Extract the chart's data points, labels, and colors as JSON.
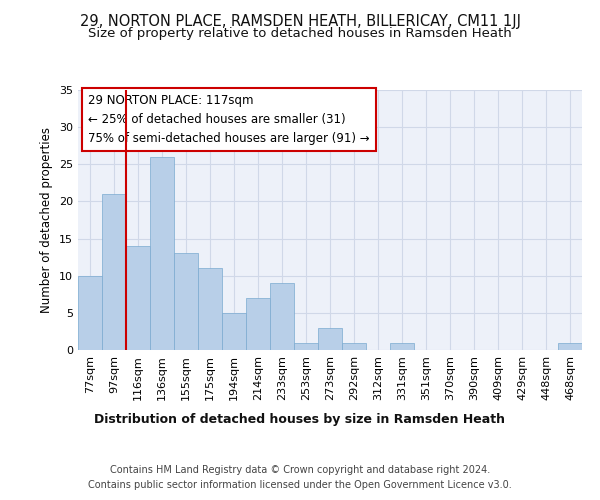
{
  "title1": "29, NORTON PLACE, RAMSDEN HEATH, BILLERICAY, CM11 1JJ",
  "title2": "Size of property relative to detached houses in Ramsden Heath",
  "xlabel": "Distribution of detached houses by size in Ramsden Heath",
  "ylabel": "Number of detached properties",
  "categories": [
    "77sqm",
    "97sqm",
    "116sqm",
    "136sqm",
    "155sqm",
    "175sqm",
    "194sqm",
    "214sqm",
    "233sqm",
    "253sqm",
    "273sqm",
    "292sqm",
    "312sqm",
    "331sqm",
    "351sqm",
    "370sqm",
    "390sqm",
    "409sqm",
    "429sqm",
    "448sqm",
    "468sqm"
  ],
  "values": [
    10,
    21,
    14,
    26,
    13,
    11,
    5,
    7,
    9,
    1,
    3,
    1,
    0,
    1,
    0,
    0,
    0,
    0,
    0,
    0,
    1
  ],
  "bar_color": "#b8cfe8",
  "bar_edge_color": "#7aaad0",
  "vline_x_index": 2,
  "vline_color": "#cc0000",
  "annotation_text": "29 NORTON PLACE: 117sqm\n← 25% of detached houses are smaller (31)\n75% of semi-detached houses are larger (91) →",
  "annotation_box_color": "#ffffff",
  "annotation_box_edge": "#cc0000",
  "ylim": [
    0,
    35
  ],
  "yticks": [
    0,
    5,
    10,
    15,
    20,
    25,
    30,
    35
  ],
  "footer": "Contains HM Land Registry data © Crown copyright and database right 2024.\nContains public sector information licensed under the Open Government Licence v3.0.",
  "bg_color": "#edf1f9",
  "grid_color": "#d0d8e8",
  "title1_fontsize": 10.5,
  "title2_fontsize": 9.5,
  "xlabel_fontsize": 9,
  "ylabel_fontsize": 8.5,
  "tick_fontsize": 8,
  "footer_fontsize": 7,
  "ann_fontsize": 8.5
}
